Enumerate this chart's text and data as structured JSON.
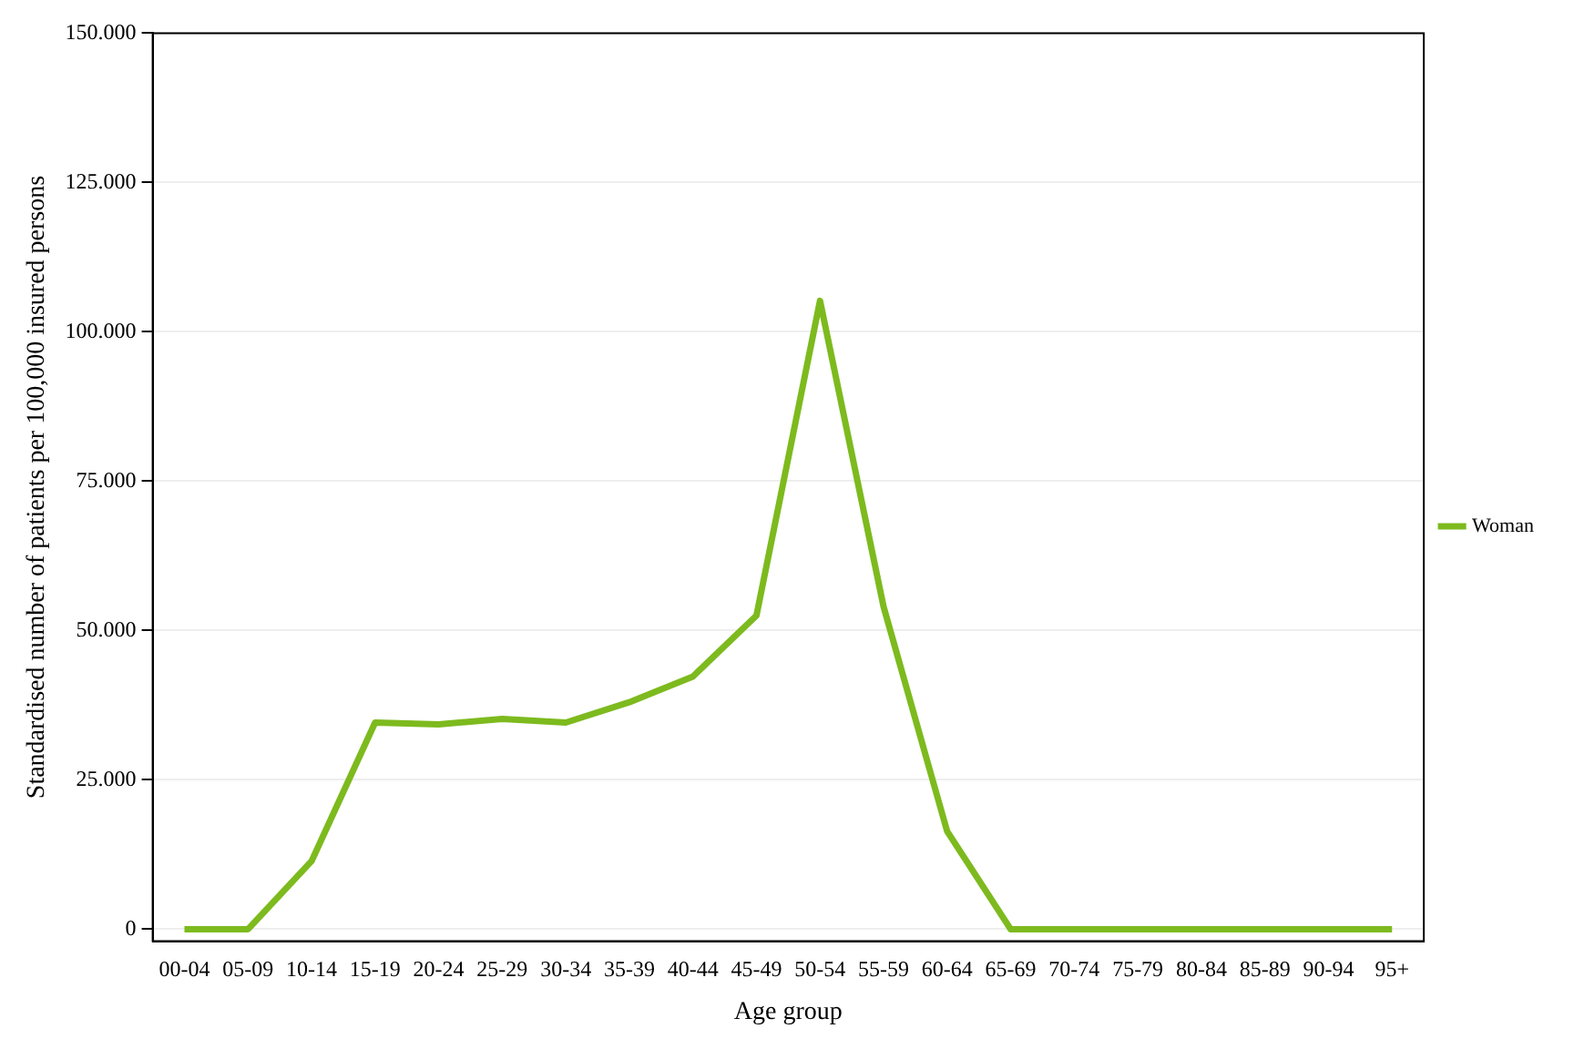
{
  "chart_data": {
    "type": "line",
    "xlabel": "Age group",
    "ylabel": "Standardised number of patients per 100,000 insured persons",
    "categories": [
      "00-04",
      "05-09",
      "10-14",
      "15-19",
      "20-24",
      "25-29",
      "30-34",
      "35-39",
      "40-44",
      "45-49",
      "50-54",
      "55-59",
      "60-64",
      "65-69",
      "70-74",
      "75-79",
      "80-84",
      "85-89",
      "90-94",
      "95+"
    ],
    "series": [
      {
        "name": "Woman",
        "color": "#7dba1e",
        "values": [
          0,
          0,
          11400,
          34600,
          34300,
          35200,
          34600,
          38000,
          42300,
          52500,
          105200,
          54000,
          16400,
          0,
          0,
          0,
          0,
          0,
          0,
          0
        ]
      }
    ],
    "ylim": [
      -2000,
      150000
    ],
    "yticks": [
      0,
      {
        "value": 25000,
        "label": "25.000"
      },
      {
        "value": 50000,
        "label": "50.000"
      },
      {
        "value": 75000,
        "label": "75.000"
      },
      {
        "value": 100000,
        "label": "100.000"
      },
      {
        "value": 125000,
        "label": "125.000"
      },
      {
        "value": 150000,
        "label": "150.000"
      }
    ],
    "grid": "y",
    "legend": "right",
    "marker": "none",
    "line_style": "solid"
  }
}
